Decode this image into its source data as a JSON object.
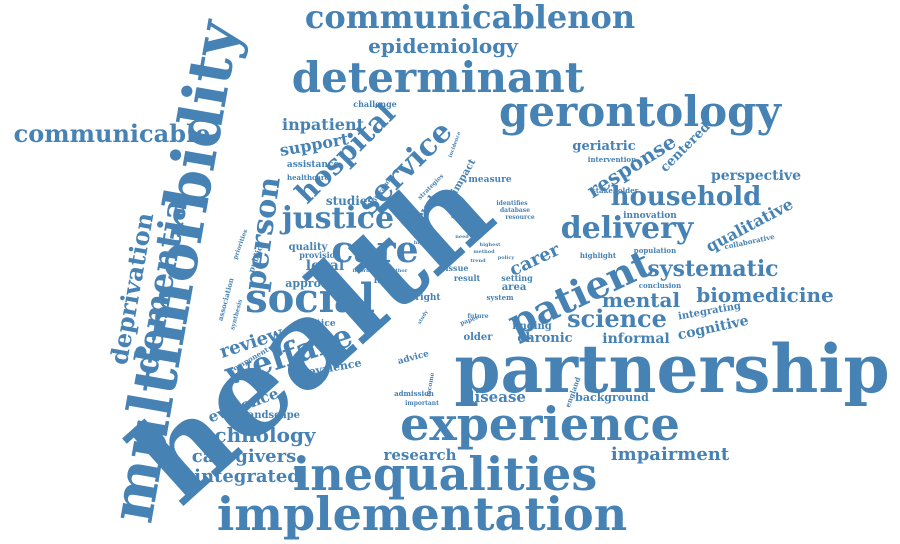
{
  "color": "#4682b4",
  "words": [
    {
      "text": "health",
      "weight": 100
    },
    {
      "text": "partnership",
      "weight": 72
    },
    {
      "text": "multimorbidity",
      "weight": 68
    },
    {
      "text": "inequalities",
      "weight": 48
    },
    {
      "text": "implementation",
      "weight": 48
    },
    {
      "text": "experience",
      "weight": 46
    },
    {
      "text": "gerontology",
      "weight": 42
    },
    {
      "text": "determinant",
      "weight": 42
    },
    {
      "text": "social",
      "weight": 40
    },
    {
      "text": "patient",
      "weight": 38
    },
    {
      "text": "communicablenon",
      "weight": 34
    },
    {
      "text": "care",
      "weight": 34
    },
    {
      "text": "dementia",
      "weight": 34
    },
    {
      "text": "welfare",
      "weight": 32
    },
    {
      "text": "service",
      "weight": 30
    },
    {
      "text": "person",
      "weight": 30
    },
    {
      "text": "delivery",
      "weight": 30
    },
    {
      "text": "justice",
      "weight": 30
    },
    {
      "text": "hospital",
      "weight": 28
    },
    {
      "text": "household",
      "weight": 28
    },
    {
      "text": "communicable",
      "weight": 26
    },
    {
      "text": "deprivation",
      "weight": 26
    },
    {
      "text": "science",
      "weight": 24
    },
    {
      "text": "systematic",
      "weight": 22
    },
    {
      "text": "technology",
      "weight": 22
    },
    {
      "text": "epidemiology",
      "weight": 20
    },
    {
      "text": "response",
      "weight": 20
    },
    {
      "text": "mental",
      "weight": 20
    },
    {
      "text": "biomedicine",
      "weight": 20
    },
    {
      "text": "impairment",
      "weight": 19
    },
    {
      "text": "caregivers",
      "weight": 18
    },
    {
      "text": "integrated",
      "weight": 18
    },
    {
      "text": "carer",
      "weight": 18
    },
    {
      "text": "review",
      "weight": 18
    },
    {
      "text": "qualitative",
      "weight": 17
    },
    {
      "text": "inpatient",
      "weight": 17
    },
    {
      "text": "research",
      "weight": 16
    },
    {
      "text": "disease",
      "weight": 16
    },
    {
      "text": "evidence",
      "weight": 16
    },
    {
      "text": "support",
      "weight": 16
    },
    {
      "text": "perspective",
      "weight": 15
    },
    {
      "text": "informal",
      "weight": 15
    },
    {
      "text": "cognitive",
      "weight": 15
    },
    {
      "text": "geriatric",
      "weight": 14
    },
    {
      "text": "centered",
      "weight": 14
    },
    {
      "text": "chronic",
      "weight": 14
    },
    {
      "text": "legal",
      "weight": 14
    },
    {
      "text": "studies",
      "weight": 12
    },
    {
      "text": "level",
      "weight": 12
    },
    {
      "text": "approach",
      "weight": 11
    },
    {
      "text": "prevalence",
      "weight": 11
    },
    {
      "text": "background",
      "weight": 11
    },
    {
      "text": "landscape",
      "weight": 11
    },
    {
      "text": "integrating",
      "weight": 10
    },
    {
      "text": "impact",
      "weight": 10
    },
    {
      "text": "quality",
      "weight": 10
    },
    {
      "text": "finding",
      "weight": 10
    },
    {
      "text": "older",
      "weight": 10
    },
    {
      "text": "area",
      "weight": 10
    },
    {
      "text": "innovation",
      "weight": 9
    },
    {
      "text": "advice",
      "weight": 9
    },
    {
      "text": "practice",
      "weight": 9
    },
    {
      "text": "assistance",
      "weight": 9
    },
    {
      "text": "measure",
      "weight": 9
    },
    {
      "text": "life",
      "weight": 9
    },
    {
      "text": "right",
      "weight": 9
    },
    {
      "text": "challenge",
      "weight": 8
    },
    {
      "text": "public",
      "weight": 8
    },
    {
      "text": "provision",
      "weight": 8
    },
    {
      "text": "issue",
      "weight": 8
    },
    {
      "text": "result",
      "weight": 8
    },
    {
      "text": "setting",
      "weight": 8
    },
    {
      "text": "system",
      "weight": 7
    },
    {
      "text": "component",
      "weight": 7
    },
    {
      "text": "admission",
      "weight": 7
    },
    {
      "text": "england",
      "weight": 7
    },
    {
      "text": "collaborative",
      "weight": 7
    },
    {
      "text": "conclusion",
      "weight": 7
    },
    {
      "text": "highlight",
      "weight": 7
    },
    {
      "text": "population",
      "weight": 7
    },
    {
      "text": "stakeholder",
      "weight": 7
    },
    {
      "text": "intervention",
      "weight": 7
    },
    {
      "text": "healthcare",
      "weight": 7
    },
    {
      "text": "association",
      "weight": 7
    },
    {
      "text": "synthesis",
      "weight": 6
    },
    {
      "text": "priorities",
      "weight": 6
    },
    {
      "text": "literature",
      "weight": 6
    },
    {
      "text": "strategies",
      "weight": 6
    },
    {
      "text": "identifies",
      "weight": 6
    },
    {
      "text": "database",
      "weight": 6
    },
    {
      "text": "resource",
      "weight": 6
    },
    {
      "text": "income",
      "weight": 6
    },
    {
      "text": "important",
      "weight": 6
    },
    {
      "text": "paper",
      "weight": 6
    },
    {
      "text": "future",
      "weight": 6
    },
    {
      "text": "highest",
      "weight": 5
    },
    {
      "text": "method",
      "weight": 5
    },
    {
      "text": "policy",
      "weight": 5
    },
    {
      "text": "inform",
      "weight": 5
    },
    {
      "text": "author",
      "weight": 5
    },
    {
      "text": "higher",
      "weight": 5
    },
    {
      "text": "need",
      "weight": 5
    },
    {
      "text": "trend",
      "weight": 5
    },
    {
      "text": "incidence",
      "weight": 5
    },
    {
      "text": "study",
      "weight": 5
    },
    {
      "text": "factor",
      "weight": 5
    }
  ]
}
